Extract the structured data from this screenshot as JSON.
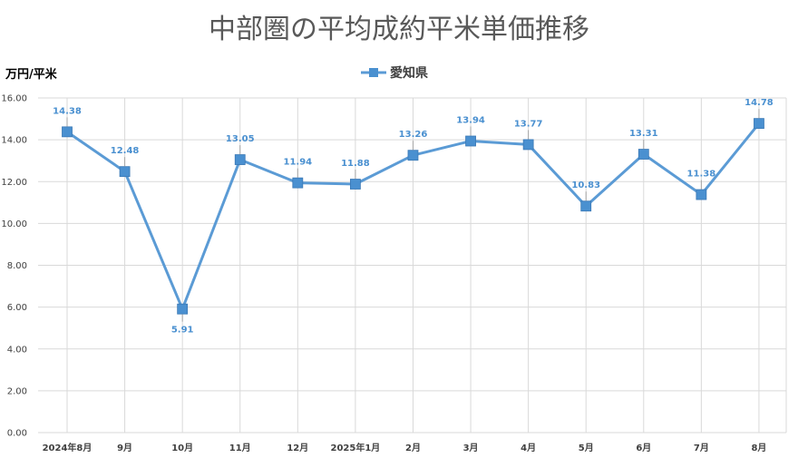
{
  "chart_data": {
    "type": "line",
    "title": "中部圏の平均成約平米単価推移",
    "ylabel": "万円/平米",
    "xlabel": "",
    "categories": [
      "2024年8月",
      "9月",
      "10月",
      "11月",
      "12月",
      "2025年1月",
      "2月",
      "3月",
      "4月",
      "5月",
      "6月",
      "7月",
      "8月"
    ],
    "series": [
      {
        "name": "愛知県",
        "values": [
          14.38,
          12.48,
          5.91,
          13.05,
          11.94,
          11.88,
          13.26,
          13.94,
          13.77,
          10.83,
          13.31,
          11.38,
          14.78
        ],
        "labels": [
          "14.38",
          "12.48",
          "5.91",
          "13.05",
          "11.94",
          "11.88",
          "13.26",
          "13.94",
          "13.77",
          "10.83",
          "13.31",
          "11.38",
          "14.78"
        ]
      }
    ],
    "ylim": [
      0,
      16
    ],
    "yticks": [
      "0.00",
      "2.00",
      "4.00",
      "6.00",
      "8.00",
      "10.00",
      "12.00",
      "14.00",
      "16.00"
    ],
    "grid": true,
    "legend": "top-center",
    "colors": {
      "series": "#5b9bd5",
      "marker": "#4a90d0",
      "grid": "#d9d9d9",
      "label": "#4a90d0"
    }
  }
}
